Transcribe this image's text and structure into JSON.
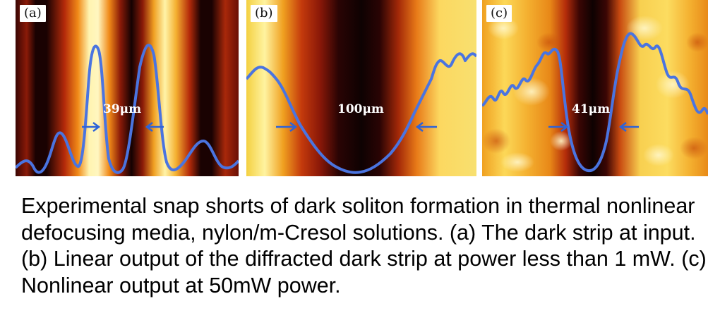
{
  "panels": [
    {
      "label": "(a)",
      "measurement": "39μm",
      "description": "dark strip at input"
    },
    {
      "label": "(b)",
      "measurement": "100μm",
      "description": "linear diffracted output"
    },
    {
      "label": "(c)",
      "measurement": "41μm",
      "description": "nonlinear output"
    }
  ],
  "caption": "Experimental snap shorts of dark soliton formation in thermal nonlinear defocusing media, nylon/m-Cresol solutions. (a) The dark strip at input. (b) Linear output of the diffracted dark strip at power less than 1 mW. (c) Nonlinear output at 50mW power.",
  "colors": {
    "profile_line": "#4a74e0",
    "arrow": "#2d63d8",
    "hot_bright": "#fff3a0",
    "hot_mid": "#f0a020",
    "hot_dark": "#120202"
  }
}
